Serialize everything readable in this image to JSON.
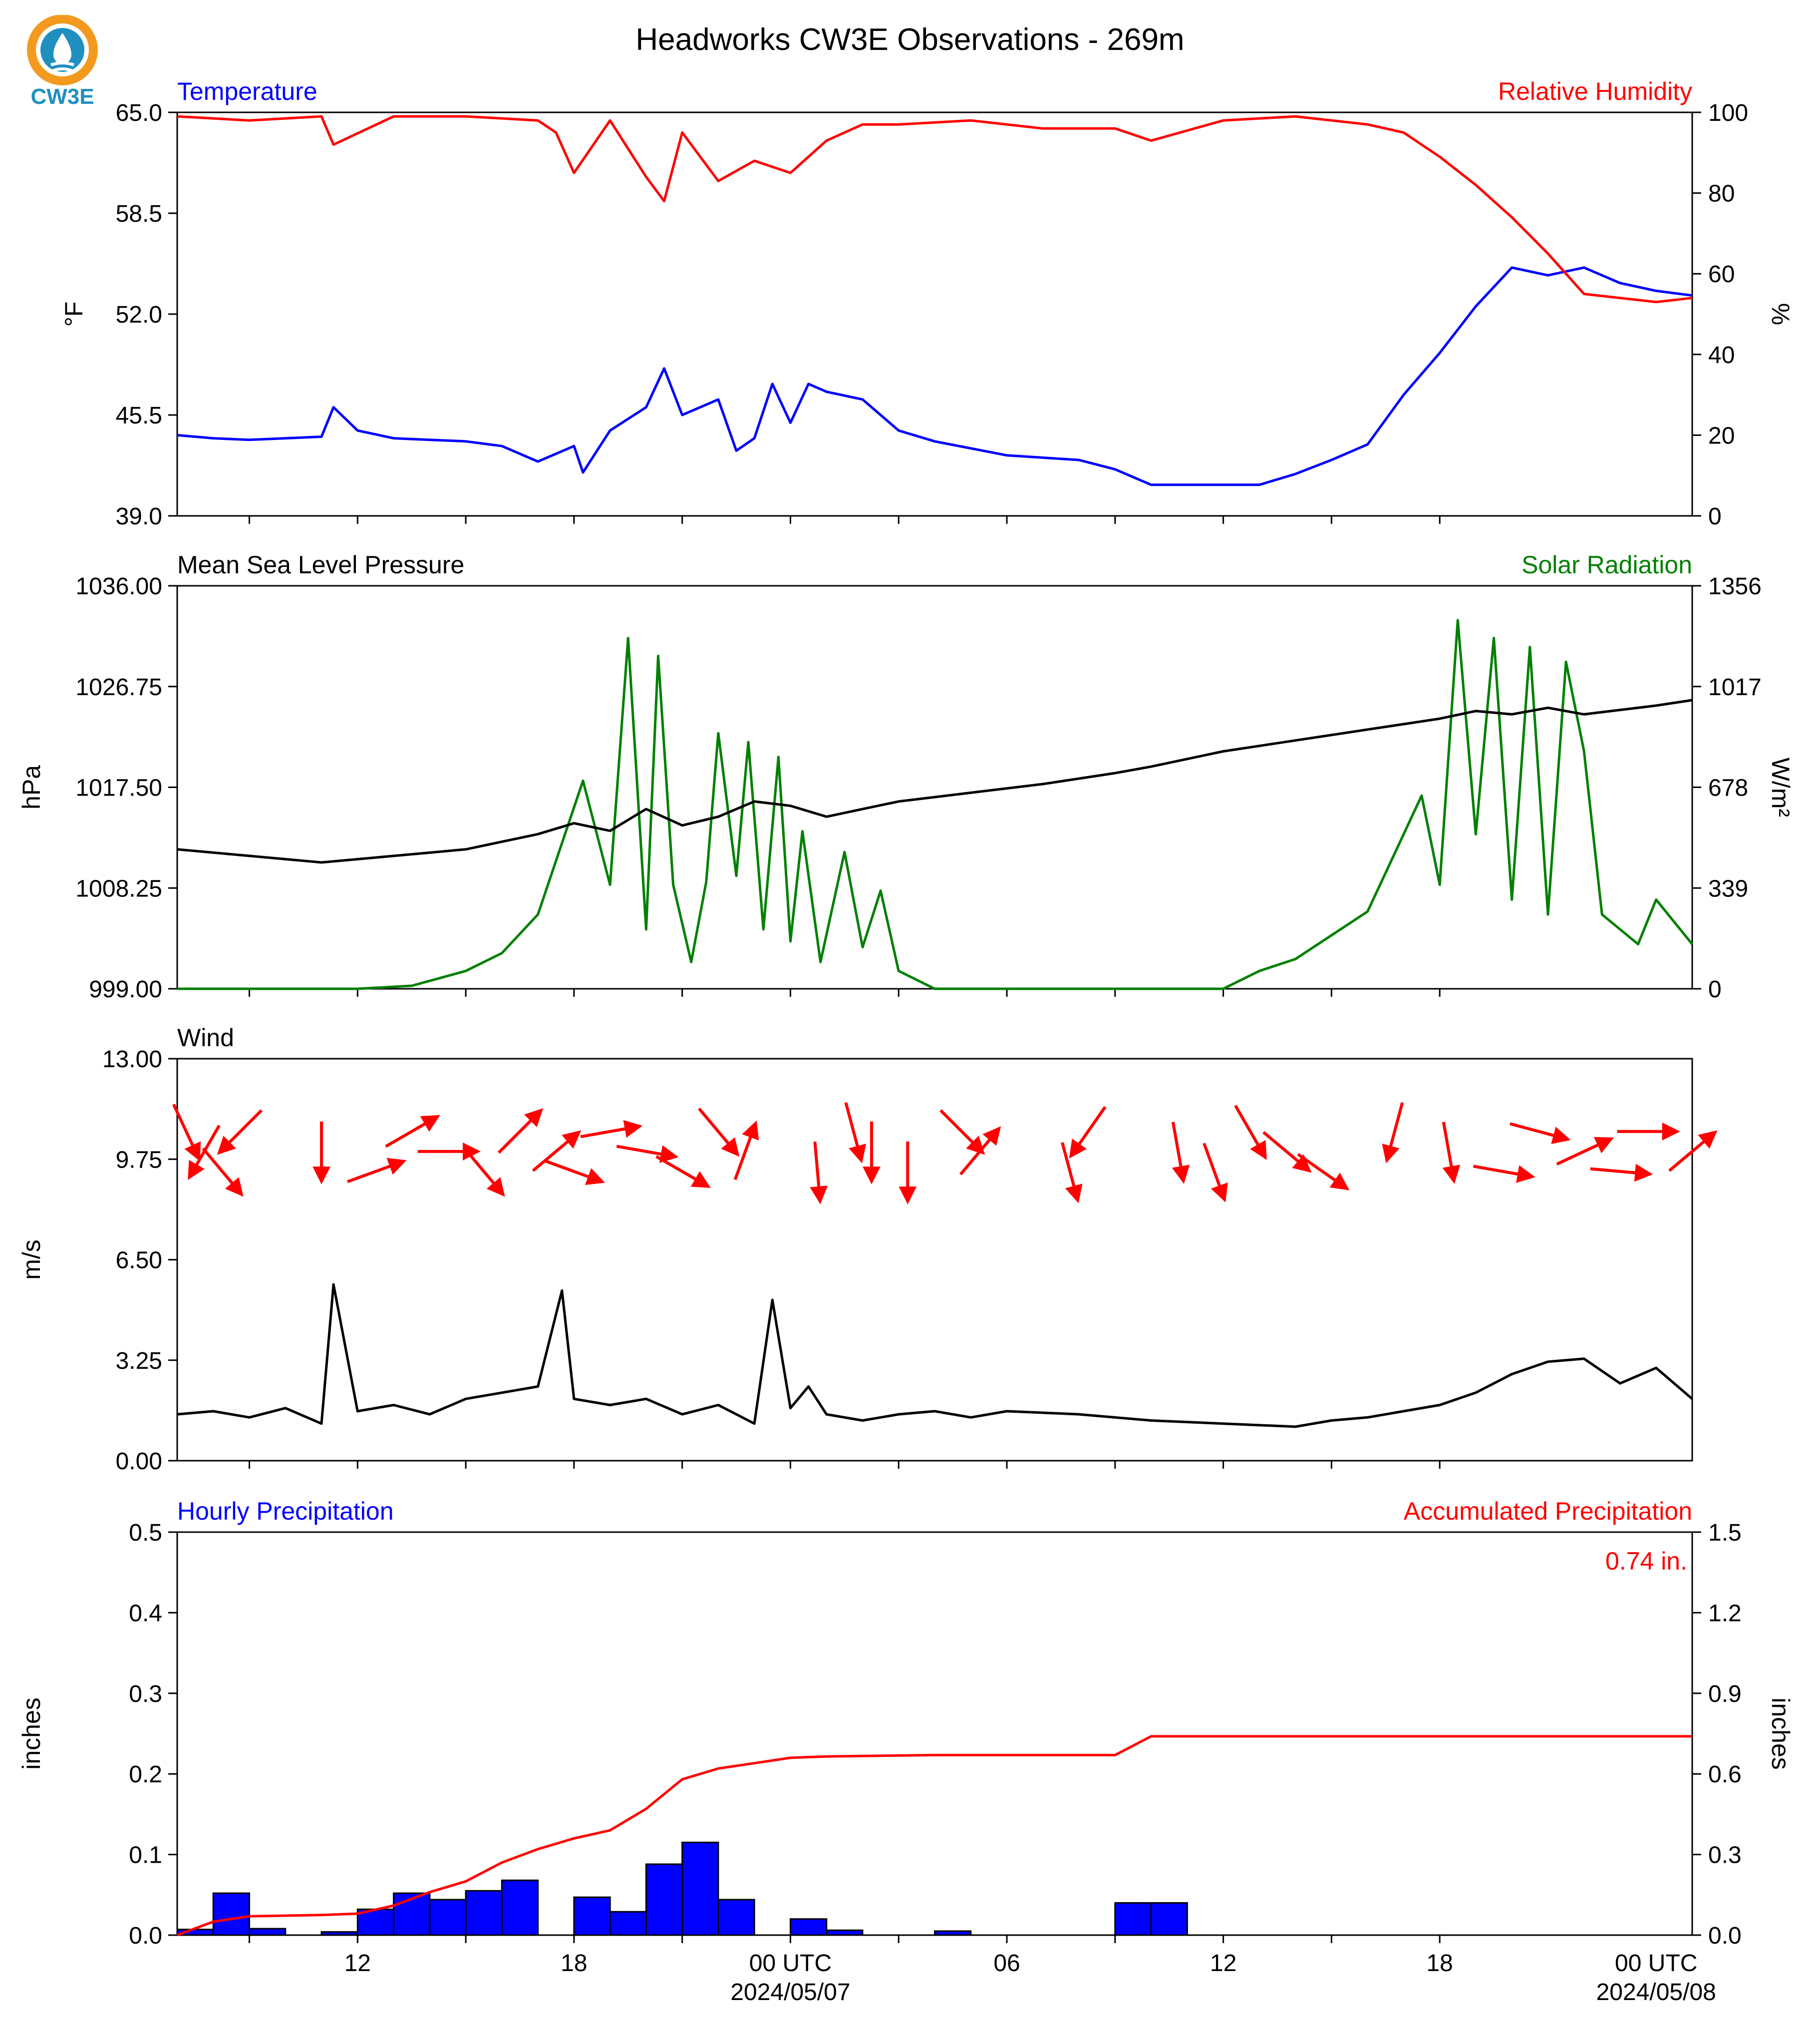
{
  "title": "Headworks CW3E Observations - 269m",
  "logo_text": "CW3E",
  "colors": {
    "temperature": "#0000ff",
    "humidity": "#ff0000",
    "pressure": "#000000",
    "solar": "#008000",
    "wind": "#000000",
    "barb": "#ff0000",
    "hourly_bar": "#0000ff",
    "accum": "#ff0000",
    "logo_orange": "#f39a1e",
    "logo_teal": "#1f8fbf"
  },
  "x_axis": {
    "tick_labels": [
      "12",
      "18",
      "00 UTC",
      "06",
      "12",
      "18",
      "00 UTC"
    ],
    "date_labels": [
      "2024/05/07",
      "2024/05/08"
    ]
  },
  "chart_data": [
    {
      "type": "line",
      "panel": "temperature-humidity",
      "left_title": "Temperature",
      "right_title": "Relative Humidity",
      "ylabel": "°F",
      "ylabel_right": "%",
      "yticks": [
        "39.0",
        "45.5",
        "52.0",
        "58.5",
        "65.0"
      ],
      "yticks_right": [
        "0",
        "20",
        "40",
        "60",
        "80",
        "100"
      ],
      "ylim": [
        39,
        65
      ],
      "ylim_right": [
        0,
        100
      ],
      "series": [
        {
          "name": "Temperature",
          "axis": "left",
          "x": [
            "2024-05-06 07:00",
            "2024-05-06 08:00",
            "2024-05-06 09:00",
            "2024-05-06 10:00",
            "2024-05-06 11:00",
            "2024-05-06 11:20",
            "2024-05-06 12:00",
            "2024-05-06 13:00",
            "2024-05-06 14:00",
            "2024-05-06 15:00",
            "2024-05-06 16:00",
            "2024-05-06 17:00",
            "2024-05-06 18:00",
            "2024-05-06 18:15",
            "2024-05-06 19:00",
            "2024-05-06 20:00",
            "2024-05-06 20:30",
            "2024-05-06 21:00",
            "2024-05-06 22:00",
            "2024-05-06 22:30",
            "2024-05-06 23:00",
            "2024-05-06 23:30",
            "2024-05-07 00:00",
            "2024-05-07 00:30",
            "2024-05-07 01:00",
            "2024-05-07 02:00",
            "2024-05-07 03:00",
            "2024-05-07 04:00",
            "2024-05-07 06:00",
            "2024-05-07 08:00",
            "2024-05-07 09:00",
            "2024-05-07 10:00",
            "2024-05-07 12:00",
            "2024-05-07 13:00",
            "2024-05-07 14:00",
            "2024-05-07 15:00",
            "2024-05-07 16:00",
            "2024-05-07 17:00",
            "2024-05-07 18:00",
            "2024-05-07 19:00",
            "2024-05-07 20:00",
            "2024-05-07 21:00",
            "2024-05-07 22:00",
            "2024-05-07 23:00",
            "2024-05-08 00:00",
            "2024-05-08 01:00"
          ],
          "values": [
            44.2,
            44.0,
            43.9,
            44.0,
            44.1,
            46.0,
            44.5,
            44.0,
            43.9,
            43.8,
            43.5,
            42.5,
            43.5,
            41.8,
            44.5,
            46.0,
            48.5,
            45.5,
            46.5,
            43.2,
            44.0,
            47.5,
            45.0,
            47.5,
            47.0,
            46.5,
            44.5,
            43.8,
            42.9,
            42.6,
            42.0,
            41.0,
            41.0,
            41.0,
            41.7,
            42.6,
            43.6,
            46.8,
            49.5,
            52.5,
            55.0,
            54.5,
            55.0,
            54.0,
            53.5,
            53.2
          ]
        },
        {
          "name": "Relative Humidity",
          "axis": "right",
          "x": [
            "2024-05-06 07:00",
            "2024-05-06 09:00",
            "2024-05-06 11:00",
            "2024-05-06 11:20",
            "2024-05-06 13:00",
            "2024-05-06 15:00",
            "2024-05-06 17:00",
            "2024-05-06 17:30",
            "2024-05-06 18:00",
            "2024-05-06 19:00",
            "2024-05-06 20:00",
            "2024-05-06 20:30",
            "2024-05-06 21:00",
            "2024-05-06 22:00",
            "2024-05-06 23:00",
            "2024-05-07 00:00",
            "2024-05-07 01:00",
            "2024-05-07 02:00",
            "2024-05-07 03:00",
            "2024-05-07 05:00",
            "2024-05-07 07:00",
            "2024-05-07 09:00",
            "2024-05-07 10:00",
            "2024-05-07 12:00",
            "2024-05-07 14:00",
            "2024-05-07 16:00",
            "2024-05-07 17:00",
            "2024-05-07 18:00",
            "2024-05-07 19:00",
            "2024-05-07 20:00",
            "2024-05-07 21:00",
            "2024-05-07 22:00",
            "2024-05-07 23:00",
            "2024-05-08 00:00",
            "2024-05-08 01:00"
          ],
          "values": [
            99,
            98,
            99,
            92,
            99,
            99,
            98,
            95,
            85,
            98,
            84,
            78,
            95,
            83,
            88,
            85,
            93,
            97,
            97,
            98,
            96,
            96,
            93,
            98,
            99,
            97,
            95,
            89,
            82,
            74,
            65,
            55,
            54,
            53,
            54
          ]
        }
      ]
    },
    {
      "type": "line",
      "panel": "pressure-solar",
      "left_title": "Mean Sea Level Pressure",
      "right_title": "Solar Radiation",
      "ylabel": "hPa",
      "ylabel_right": "W/m²",
      "yticks": [
        "999.00",
        "1008.25",
        "1017.50",
        "1026.75",
        "1036.00"
      ],
      "yticks_right": [
        "0",
        "339",
        "678",
        "1017",
        "1356"
      ],
      "ylim": [
        999,
        1036
      ],
      "ylim_right": [
        0,
        1356
      ],
      "series": [
        {
          "name": "Mean Sea Level Pressure",
          "axis": "left",
          "x": [
            "2024-05-06 07:00",
            "2024-05-06 09:00",
            "2024-05-06 11:00",
            "2024-05-06 13:00",
            "2024-05-06 15:00",
            "2024-05-06 17:00",
            "2024-05-06 18:00",
            "2024-05-06 19:00",
            "2024-05-06 20:00",
            "2024-05-06 21:00",
            "2024-05-06 22:00",
            "2024-05-06 23:00",
            "2024-05-07 00:00",
            "2024-05-07 01:00",
            "2024-05-07 02:00",
            "2024-05-07 03:00",
            "2024-05-07 05:00",
            "2024-05-07 07:00",
            "2024-05-07 09:00",
            "2024-05-07 10:00",
            "2024-05-07 12:00",
            "2024-05-07 14:00",
            "2024-05-07 16:00",
            "2024-05-07 18:00",
            "2024-05-07 19:00",
            "2024-05-07 20:00",
            "2024-05-07 21:00",
            "2024-05-07 22:00",
            "2024-05-07 23:00",
            "2024-05-08 00:00",
            "2024-05-08 01:00"
          ],
          "values": [
            1011.8,
            1011.2,
            1010.6,
            1011.2,
            1011.8,
            1013.2,
            1014.2,
            1013.5,
            1015.5,
            1014.0,
            1014.8,
            1016.2,
            1015.8,
            1014.8,
            1015.5,
            1016.2,
            1017.0,
            1017.8,
            1018.8,
            1019.4,
            1020.8,
            1021.8,
            1022.8,
            1023.8,
            1024.5,
            1024.2,
            1024.8,
            1024.2,
            1024.6,
            1025.0,
            1025.5
          ]
        },
        {
          "name": "Solar Radiation",
          "axis": "right",
          "x": [
            "2024-05-06 07:00",
            "2024-05-06 12:00",
            "2024-05-06 13:30",
            "2024-05-06 15:00",
            "2024-05-06 16:00",
            "2024-05-06 17:00",
            "2024-05-06 17:45",
            "2024-05-06 18:15",
            "2024-05-06 19:00",
            "2024-05-06 19:30",
            "2024-05-06 20:00",
            "2024-05-06 20:20",
            "2024-05-06 20:45",
            "2024-05-06 21:15",
            "2024-05-06 21:40",
            "2024-05-06 22:00",
            "2024-05-06 22:30",
            "2024-05-06 22:50",
            "2024-05-06 23:15",
            "2024-05-06 23:40",
            "2024-05-07 00:00",
            "2024-05-07 00:20",
            "2024-05-07 00:50",
            "2024-05-07 01:30",
            "2024-05-07 02:00",
            "2024-05-07 02:30",
            "2024-05-07 03:00",
            "2024-05-07 04:00",
            "2024-05-07 12:00",
            "2024-05-07 13:00",
            "2024-05-07 14:00",
            "2024-05-07 15:00",
            "2024-05-07 16:00",
            "2024-05-07 17:00",
            "2024-05-07 17:30",
            "2024-05-07 18:00",
            "2024-05-07 18:30",
            "2024-05-07 19:00",
            "2024-05-07 19:30",
            "2024-05-07 20:00",
            "2024-05-07 20:30",
            "2024-05-07 21:00",
            "2024-05-07 21:30",
            "2024-05-07 22:00",
            "2024-05-07 22:30",
            "2024-05-07 23:00",
            "2024-05-07 23:30",
            "2024-05-08 00:00",
            "2024-05-08 01:00"
          ],
          "values": [
            0,
            0,
            10,
            60,
            120,
            250,
            520,
            700,
            350,
            1180,
            200,
            1120,
            350,
            90,
            360,
            860,
            380,
            830,
            200,
            780,
            160,
            530,
            90,
            460,
            140,
            330,
            60,
            0,
            0,
            60,
            100,
            180,
            260,
            520,
            650,
            350,
            1240,
            520,
            1180,
            300,
            1150,
            250,
            1100,
            800,
            250,
            200,
            150,
            300,
            150
          ]
        }
      ]
    },
    {
      "type": "line",
      "panel": "wind",
      "left_title": "Wind",
      "ylabel": "m/s",
      "yticks": [
        "0.00",
        "3.25",
        "6.50",
        "9.75",
        "13.00"
      ],
      "ylim": [
        0,
        13
      ],
      "series": [
        {
          "name": "Wind",
          "axis": "left",
          "x": [
            "2024-05-06 07:00",
            "2024-05-06 08:00",
            "2024-05-06 09:00",
            "2024-05-06 10:00",
            "2024-05-06 11:00",
            "2024-05-06 11:20",
            "2024-05-06 12:00",
            "2024-05-06 13:00",
            "2024-05-06 14:00",
            "2024-05-06 15:00",
            "2024-05-06 16:00",
            "2024-05-06 17:00",
            "2024-05-06 17:40",
            "2024-05-06 18:00",
            "2024-05-06 19:00",
            "2024-05-06 20:00",
            "2024-05-06 21:00",
            "2024-05-06 22:00",
            "2024-05-06 23:00",
            "2024-05-06 23:30",
            "2024-05-07 00:00",
            "2024-05-07 00:30",
            "2024-05-07 01:00",
            "2024-05-07 02:00",
            "2024-05-07 03:00",
            "2024-05-07 04:00",
            "2024-05-07 05:00",
            "2024-05-07 06:00",
            "2024-05-07 08:00",
            "2024-05-07 10:00",
            "2024-05-07 12:00",
            "2024-05-07 14:00",
            "2024-05-07 15:00",
            "2024-05-07 16:00",
            "2024-05-07 17:00",
            "2024-05-07 18:00",
            "2024-05-07 19:00",
            "2024-05-07 20:00",
            "2024-05-07 21:00",
            "2024-05-07 22:00",
            "2024-05-07 23:00",
            "2024-05-08 00:00",
            "2024-05-08 01:00"
          ],
          "values": [
            1.5,
            1.6,
            1.4,
            1.7,
            1.2,
            5.7,
            1.6,
            1.8,
            1.5,
            2.0,
            2.2,
            2.4,
            5.5,
            2.0,
            1.8,
            2.0,
            1.5,
            1.8,
            1.2,
            5.2,
            1.7,
            2.4,
            1.5,
            1.3,
            1.5,
            1.6,
            1.4,
            1.6,
            1.5,
            1.3,
            1.2,
            1.1,
            1.3,
            1.4,
            1.6,
            1.8,
            2.2,
            2.8,
            3.2,
            3.3,
            2.5,
            3.0,
            2.0
          ]
        }
      ]
    },
    {
      "type": "bar",
      "panel": "precipitation",
      "left_title": "Hourly Precipitation",
      "right_title": "Accumulated Precipitation",
      "total_label": "0.74 in.",
      "ylabel": "inches",
      "ylabel_right": "inches",
      "yticks": [
        "0.0",
        "0.1",
        "0.2",
        "0.3",
        "0.4",
        "0.5"
      ],
      "yticks_right": [
        "0.0",
        "0.3",
        "0.6",
        "0.9",
        "1.2",
        "1.5"
      ],
      "ylim": [
        0,
        0.5
      ],
      "ylim_right": [
        0,
        1.5
      ],
      "series": [
        {
          "name": "Hourly Precipitation",
          "axis": "left",
          "x": [
            "2024-05-06 07:00",
            "2024-05-06 08:00",
            "2024-05-06 09:00",
            "2024-05-06 11:00",
            "2024-05-06 12:00",
            "2024-05-06 13:00",
            "2024-05-06 14:00",
            "2024-05-06 15:00",
            "2024-05-06 16:00",
            "2024-05-06 18:00",
            "2024-05-06 19:00",
            "2024-05-06 20:00",
            "2024-05-06 21:00",
            "2024-05-06 22:00",
            "2024-05-07 00:00",
            "2024-05-07 01:00",
            "2024-05-07 04:00",
            "2024-05-07 09:00",
            "2024-05-07 10:00"
          ],
          "values": [
            0.007,
            0.052,
            0.008,
            0.004,
            0.032,
            0.052,
            0.044,
            0.055,
            0.068,
            0.047,
            0.029,
            0.088,
            0.115,
            0.044,
            0.02,
            0.006,
            0.005,
            0.04,
            0.04
          ]
        },
        {
          "name": "Accumulated Precipitation",
          "axis": "right",
          "x": [
            "2024-05-06 07:00",
            "2024-05-06 08:00",
            "2024-05-06 09:00",
            "2024-05-06 11:00",
            "2024-05-06 12:00",
            "2024-05-06 13:00",
            "2024-05-06 14:00",
            "2024-05-06 15:00",
            "2024-05-06 16:00",
            "2024-05-06 17:00",
            "2024-05-06 18:00",
            "2024-05-06 19:00",
            "2024-05-06 20:00",
            "2024-05-06 21:00",
            "2024-05-06 22:00",
            "2024-05-06 23:00",
            "2024-05-07 00:00",
            "2024-05-07 01:00",
            "2024-05-07 04:00",
            "2024-05-07 09:00",
            "2024-05-07 10:00",
            "2024-05-08 01:00"
          ],
          "values": [
            0.0,
            0.05,
            0.07,
            0.075,
            0.08,
            0.11,
            0.16,
            0.2,
            0.27,
            0.32,
            0.36,
            0.39,
            0.47,
            0.58,
            0.62,
            0.64,
            0.66,
            0.665,
            0.67,
            0.67,
            0.74,
            0.74
          ]
        }
      ]
    }
  ],
  "wind_barbs": [
    {
      "time": "2024-05-06 07:15",
      "from_deg": 335
    },
    {
      "time": "2024-05-06 07:45",
      "from_deg": 30
    },
    {
      "time": "2024-05-06 08:15",
      "from_deg": 320
    },
    {
      "time": "2024-05-06 08:45",
      "from_deg": 45
    },
    {
      "time": "2024-05-06 11:00",
      "from_deg": 0
    },
    {
      "time": "2024-05-06 12:30",
      "from_deg": 250
    },
    {
      "time": "2024-05-06 13:30",
      "from_deg": 240
    },
    {
      "time": "2024-05-06 14:30",
      "from_deg": 270
    },
    {
      "time": "2024-05-06 15:30",
      "from_deg": 320
    },
    {
      "time": "2024-05-06 16:30",
      "from_deg": 225
    },
    {
      "time": "2024-05-06 17:30",
      "from_deg": 230
    },
    {
      "time": "2024-05-06 18:00",
      "from_deg": 290
    },
    {
      "time": "2024-05-06 19:00",
      "from_deg": 260
    },
    {
      "time": "2024-05-06 20:00",
      "from_deg": 280
    },
    {
      "time": "2024-05-06 21:00",
      "from_deg": 300
    },
    {
      "time": "2024-05-06 22:00",
      "from_deg": 320
    },
    {
      "time": "2024-05-06 22:45",
      "from_deg": 200
    },
    {
      "time": "2024-05-07 00:45",
      "from_deg": 355
    },
    {
      "time": "2024-05-07 01:45",
      "from_deg": 345
    },
    {
      "time": "2024-05-07 02:15",
      "from_deg": 0
    },
    {
      "time": "2024-05-07 03:15",
      "from_deg": 0
    },
    {
      "time": "2024-05-07 04:45",
      "from_deg": 315
    },
    {
      "time": "2024-05-07 05:15",
      "from_deg": 220
    },
    {
      "time": "2024-05-07 07:45",
      "from_deg": 345
    },
    {
      "time": "2024-05-07 08:15",
      "from_deg": 35
    },
    {
      "time": "2024-05-07 10:45",
      "from_deg": 350
    },
    {
      "time": "2024-05-07 11:45",
      "from_deg": 340
    },
    {
      "time": "2024-05-07 12:45",
      "from_deg": 330
    },
    {
      "time": "2024-05-07 13:45",
      "from_deg": 310
    },
    {
      "time": "2024-05-07 14:45",
      "from_deg": 305
    },
    {
      "time": "2024-05-07 16:45",
      "from_deg": 15
    },
    {
      "time": "2024-05-07 18:15",
      "from_deg": 350
    },
    {
      "time": "2024-05-07 19:45",
      "from_deg": 280
    },
    {
      "time": "2024-05-07 20:45",
      "from_deg": 285
    },
    {
      "time": "2024-05-07 22:00",
      "from_deg": 245
    },
    {
      "time": "2024-05-07 23:00",
      "from_deg": 275
    },
    {
      "time": "2024-05-07 23:45",
      "from_deg": 270
    },
    {
      "time": "2024-05-08 01:00",
      "from_deg": 230
    }
  ]
}
